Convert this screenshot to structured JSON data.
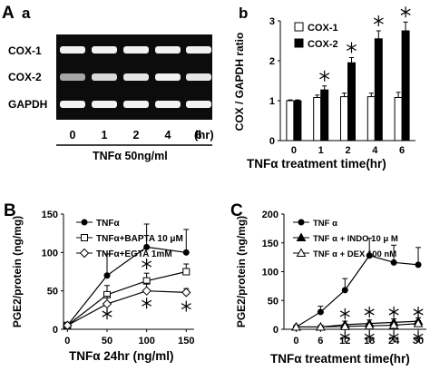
{
  "figure": {
    "panel_A": "A",
    "panel_B": "B",
    "panel_C": "C"
  },
  "chart_data": [
    {
      "panel": "A",
      "sublabel": "a",
      "type": "table",
      "blot_rows": [
        "COX-1",
        "COX-2",
        "GAPDH"
      ],
      "lanes": [
        "0",
        "1",
        "2",
        "4",
        "6"
      ],
      "lane_unit": "(hr)",
      "treatment_label": "TNFα 50ng/ml",
      "band_intensity": {
        "COX-1": [
          0.95,
          0.95,
          0.95,
          0.95,
          0.95
        ],
        "COX-2": [
          0.65,
          0.85,
          0.9,
          0.95,
          0.9
        ],
        "GAPDH": [
          0.95,
          0.95,
          0.95,
          0.95,
          0.95
        ]
      }
    },
    {
      "panel": "A",
      "sublabel": "b",
      "type": "bar",
      "categories": [
        "0",
        "1",
        "2",
        "4",
        "6"
      ],
      "series": [
        {
          "name": "COX-1",
          "values": [
            1.0,
            1.08,
            1.1,
            1.1,
            1.08
          ],
          "errors": [
            0.02,
            0.06,
            0.09,
            0.09,
            0.13
          ],
          "color": "#ffffff"
        },
        {
          "name": "COX-2",
          "values": [
            1.0,
            1.27,
            1.95,
            2.55,
            2.75
          ],
          "errors": [
            0.02,
            0.1,
            0.13,
            0.2,
            0.22
          ],
          "color": "#000000"
        }
      ],
      "significant": {
        "COX-2": [
          false,
          true,
          true,
          true,
          true
        ]
      },
      "ylabel": "COX / GAPDH ratio",
      "xlabel": "TNFα  treatment time(hr)",
      "ylim": [
        0,
        3
      ],
      "yticks": [
        "0",
        "1",
        "2",
        "3"
      ],
      "legend_position": "top-left"
    },
    {
      "panel": "B",
      "type": "line",
      "x": [
        0,
        50,
        100,
        150
      ],
      "xticks": [
        "0",
        "50",
        "100",
        "150"
      ],
      "xlim": [
        -5,
        160
      ],
      "series": [
        {
          "name": "TNFα",
          "marker": "circle-filled",
          "values": [
            5,
            70,
            107,
            100
          ],
          "errors": [
            2,
            28,
            30,
            30
          ]
        },
        {
          "name": "TNFα+BAPTA 10 μM",
          "marker": "square-open",
          "values": [
            5,
            45,
            63,
            75
          ],
          "errors": [
            2,
            12,
            10,
            10
          ]
        },
        {
          "name": "TNFα+EGTA 1mM",
          "marker": "diamond-open",
          "values": [
            5,
            33,
            50,
            48
          ],
          "errors": [
            2,
            10,
            10,
            5
          ]
        }
      ],
      "significance_markers": [
        {
          "x": 50,
          "y": 20
        },
        {
          "x": 100,
          "y": 85
        },
        {
          "x": 100,
          "y": 34
        },
        {
          "x": 150,
          "y": 30
        }
      ],
      "ylabel": "PGE2/protein (ng/mg)",
      "xlabel": "TNFα 24hr (ng/ml)",
      "ylim": [
        0,
        150
      ],
      "yticks": [
        "0",
        "50",
        "100",
        "150"
      ],
      "legend_position": "top-left"
    },
    {
      "panel": "C",
      "type": "line",
      "x": [
        0,
        6,
        12,
        18,
        24,
        30
      ],
      "xticks": [
        "0",
        "6",
        "12",
        "18",
        "24",
        "30"
      ],
      "xlim": [
        -3,
        32
      ],
      "series": [
        {
          "name": "TNF α",
          "marker": "circle-filled",
          "values": [
            4,
            30,
            68,
            128,
            116,
            112
          ],
          "errors": [
            2,
            10,
            20,
            30,
            30,
            30
          ]
        },
        {
          "name": "TNF α + INDO 10 μ M",
          "marker": "triangle-filled",
          "values": [
            4,
            4,
            8,
            10,
            12,
            14
          ],
          "errors": [
            2,
            3,
            6,
            6,
            6,
            6
          ]
        },
        {
          "name": "TNF α + DEX 100 nM",
          "marker": "triangle-open",
          "values": [
            4,
            4,
            5,
            6,
            7,
            10
          ],
          "errors": [
            2,
            3,
            4,
            4,
            4,
            5
          ]
        }
      ],
      "significance_markers": [
        {
          "x": 12,
          "y": 27
        },
        {
          "x": 18,
          "y": 30
        },
        {
          "x": 24,
          "y": 30
        },
        {
          "x": 30,
          "y": 30
        },
        {
          "x": 12,
          "y": -13
        },
        {
          "x": 18,
          "y": -13
        },
        {
          "x": 24,
          "y": -13
        },
        {
          "x": 30,
          "y": -13
        }
      ],
      "ylabel": "PGE2/protein (ng/mg)",
      "xlabel": "TNFα  treatment time(hr)",
      "ylim": [
        0,
        200
      ],
      "yticks": [
        "0",
        "50",
        "100",
        "150",
        "200"
      ],
      "legend_position": "top-left"
    }
  ]
}
